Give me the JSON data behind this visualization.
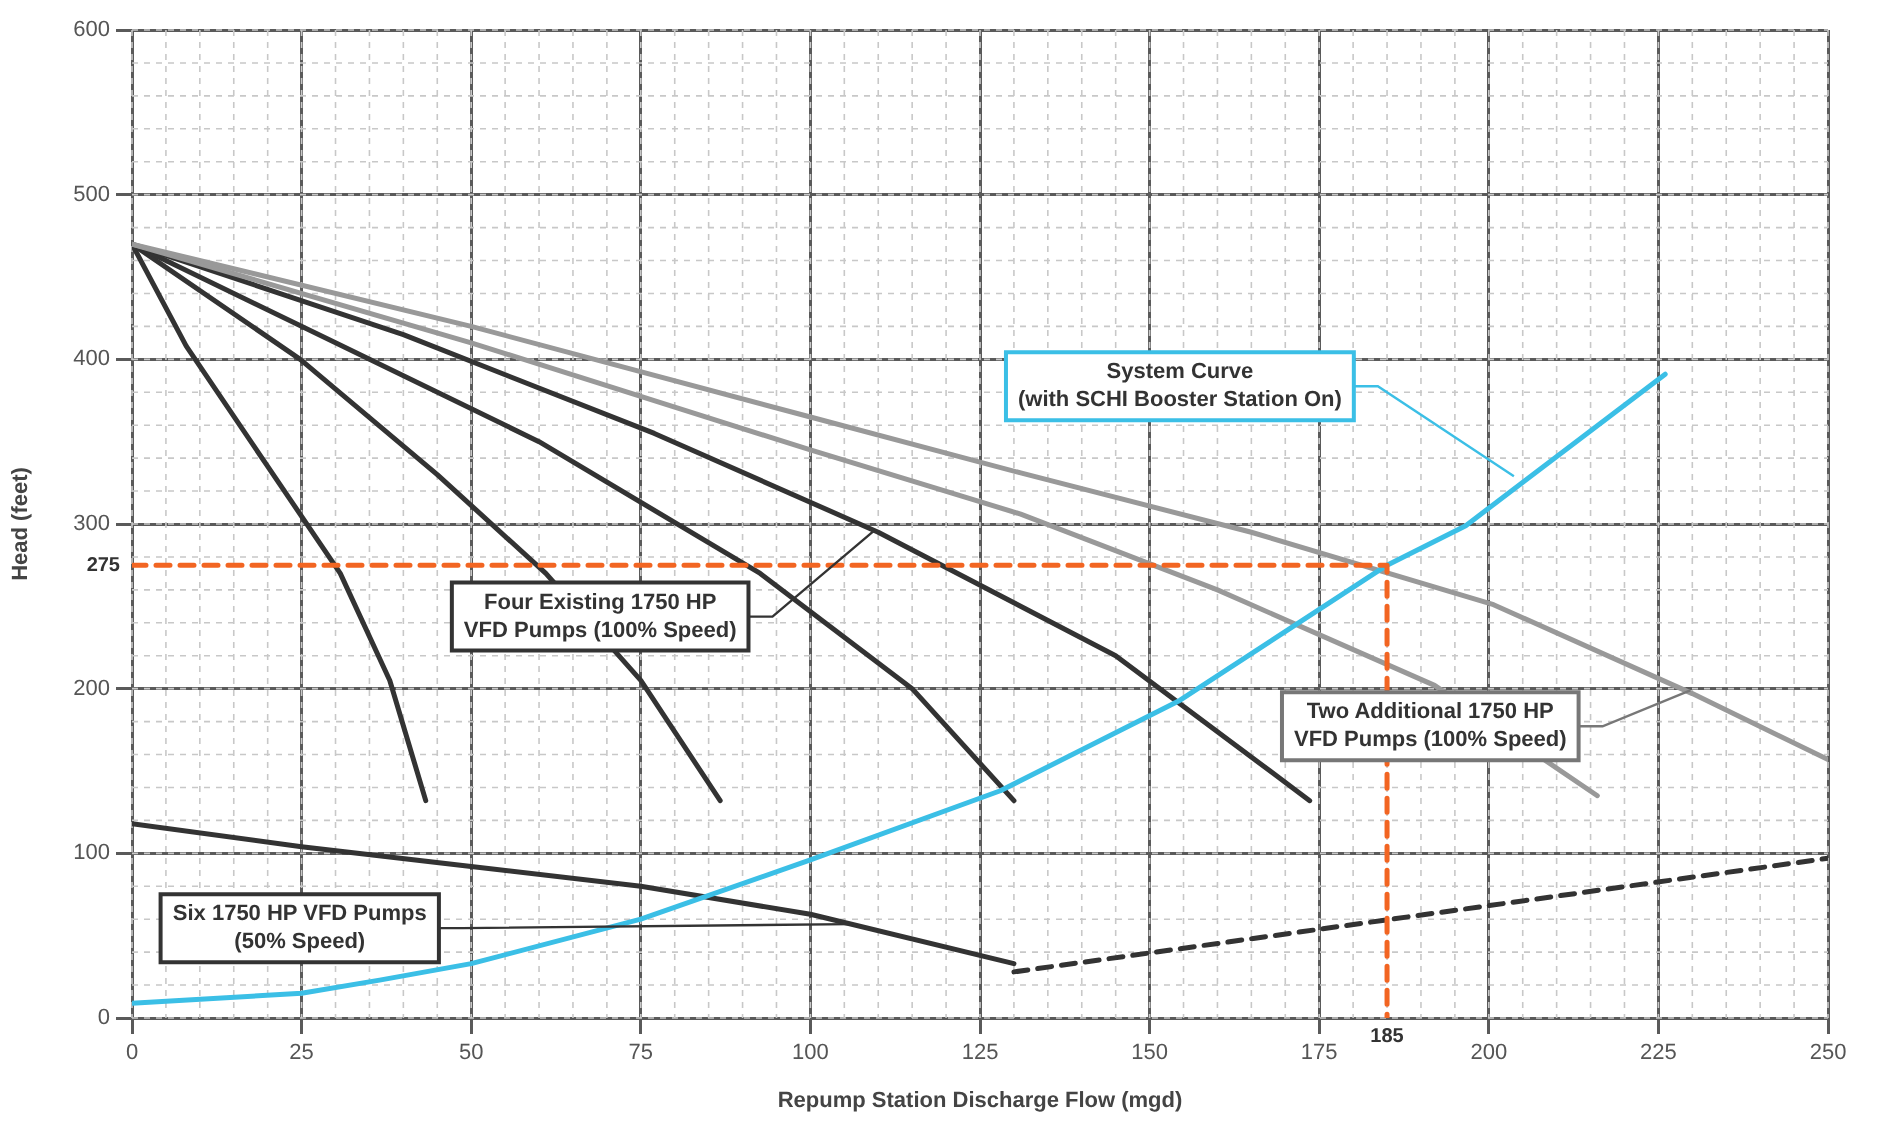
{
  "chart_data": {
    "type": "line",
    "xlabel": "Repump Station Discharge Flow (mgd)",
    "ylabel": "Head (feet)",
    "xlim": [
      0,
      250
    ],
    "xticks": [
      0,
      25,
      50,
      75,
      100,
      125,
      150,
      175,
      200,
      225,
      250
    ],
    "ylim": [
      0,
      600
    ],
    "yticks": [
      0,
      100,
      200,
      300,
      400,
      500,
      600
    ],
    "grid": true,
    "legend": false,
    "marker": "none",
    "series": [
      {
        "type": "line",
        "color": "#333333",
        "x": [
          0,
          8,
          20,
          30.7,
          38,
          43.3
        ],
        "values": [
          470,
          408,
          335,
          270,
          205,
          132
        ]
      },
      {
        "type": "line",
        "color": "#333333",
        "x": [
          0,
          24.8,
          45,
          61,
          75,
          86.7
        ],
        "values": [
          470,
          400,
          330,
          270,
          205,
          132
        ]
      },
      {
        "type": "line",
        "color": "#333333",
        "x": [
          0,
          30,
          60,
          92.6,
          115,
          130
        ],
        "values": [
          470,
          410,
          350,
          270,
          200,
          132
        ]
      },
      {
        "type": "line",
        "color": "#333333",
        "x": [
          0,
          40,
          77,
          110,
          145,
          173.6
        ],
        "values": [
          470,
          415,
          355,
          295,
          220,
          132
        ]
      },
      {
        "type": "line",
        "color": "#999999",
        "x": [
          0,
          50,
          100,
          131,
          160,
          192,
          216
        ],
        "values": [
          470,
          410,
          345,
          306,
          260,
          202,
          135
        ]
      },
      {
        "type": "line",
        "color": "#999999",
        "x": [
          0,
          50,
          100,
          131,
          165,
          200.7,
          230,
          250
        ],
        "values": [
          470,
          420,
          365,
          331,
          295,
          251,
          197,
          157
        ]
      },
      {
        "type": "line",
        "color": "#333333",
        "x": [
          0,
          25,
          50,
          75,
          100,
          130
        ],
        "values": [
          118,
          104,
          92,
          80,
          63,
          33
        ]
      },
      {
        "type": "line",
        "color": "#333333",
        "line_style": "dashed",
        "x": [
          130,
          250
        ],
        "values": [
          28,
          97
        ]
      },
      {
        "type": "line",
        "color": "#3bbfe6",
        "x": [
          0,
          25,
          36.5,
          50,
          75,
          100,
          128,
          154.5,
          185,
          196.6,
          226
        ],
        "values": [
          9,
          15,
          23,
          33,
          60,
          96,
          138,
          193,
          275,
          299,
          391
        ]
      },
      {
        "type": "line",
        "color": "#f26522",
        "line_style": "dashed",
        "x": [
          0,
          185,
          185
        ],
        "values": [
          275,
          275,
          0
        ]
      }
    ],
    "annotations": [
      {
        "text": "Four Existing 1750 HP\nVFD Pumps (100% Speed)",
        "x": 109.4,
        "y": 296
      },
      {
        "text": "System Curve\n(with SCHI Booster Station On)",
        "x": 203.7,
        "y": 329
      },
      {
        "text": "Two Additional 1750 HP\nVFD Pumps (100% Speed)",
        "x": 229.7,
        "y": 199
      },
      {
        "text": "Six 1750 HP VFD Pumps\n(50% Speed)",
        "x": 105.8,
        "y": 57
      },
      {
        "text": "275",
        "x": 0,
        "y": 275
      },
      {
        "text": "185",
        "x": 185,
        "y": 0
      }
    ]
  }
}
